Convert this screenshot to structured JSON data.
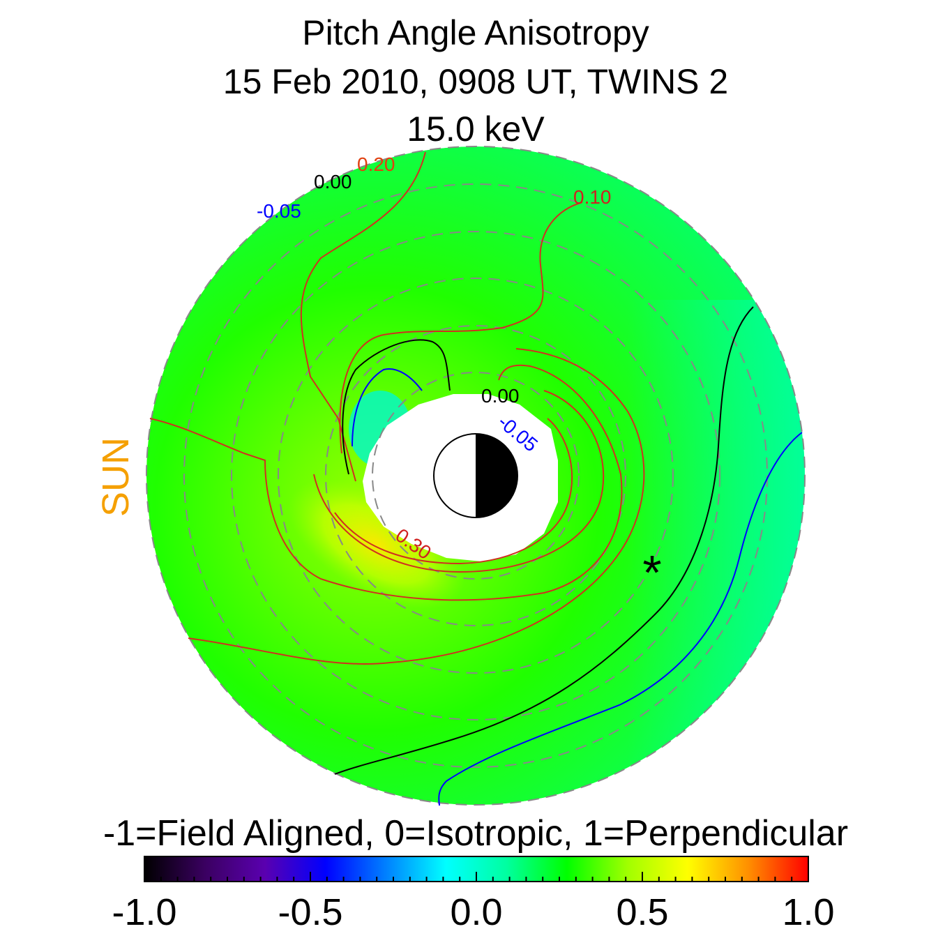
{
  "title": {
    "line1": "Pitch Angle Anisotropy",
    "line2": "15 Feb 2010, 0908 UT,  TWINS 2",
    "line3": "15.0 keV"
  },
  "sun_label": "SUN",
  "colorbar": {
    "caption": "-1=Field Aligned, 0=Isotropic, 1=Perpendicular",
    "colors": [
      "#000000",
      "#3a0060",
      "#5a00b0",
      "#0000ff",
      "#0080ff",
      "#00ffff",
      "#00ffa0",
      "#00ff00",
      "#a0ff00",
      "#ffff00",
      "#ff9000",
      "#ff0000"
    ],
    "tick_labels": [
      "-1.0",
      "-0.5",
      "0.0",
      "0.5",
      "1.0"
    ]
  },
  "chart_data": {
    "type": "heatmap",
    "title": "Pitch Angle Anisotropy",
    "subtitle": "15 Feb 2010, 0908 UT,  TWINS 2 / 15.0 keV",
    "zlim": [
      -1.0,
      1.0
    ],
    "contour_labels": [
      {
        "text": "-0.05",
        "color": "#0000ff"
      },
      {
        "text": "0.00",
        "color": "#000000"
      },
      {
        "text": "0.20",
        "color": "#e04010"
      },
      {
        "text": "0.10",
        "color": "#d02020"
      },
      {
        "text": "0.00",
        "color": "#000000"
      },
      {
        "text": "-0.05",
        "color": "#0000ff"
      },
      {
        "text": "0.30",
        "color": "#d02020"
      }
    ],
    "contour_levels": [
      -0.05,
      0.0,
      0.1,
      0.2,
      0.3
    ],
    "contour_colors": {
      "neg": "#0000ff",
      "zero": "#000000",
      "pos": "#d03020"
    },
    "grid": "dashed concentric circles",
    "marker": "*"
  }
}
